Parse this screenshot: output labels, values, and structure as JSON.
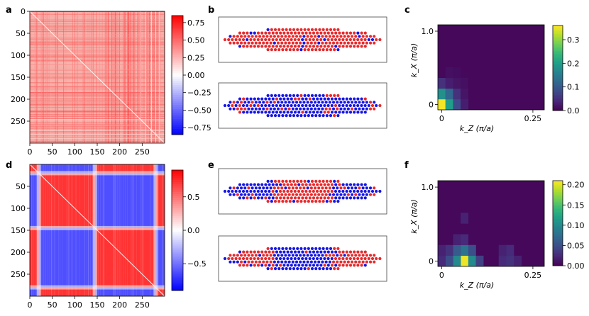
{
  "panels": [
    {
      "label": "a"
    },
    {
      "label": "b"
    },
    {
      "label": "c"
    },
    {
      "label": "d"
    },
    {
      "label": "e"
    },
    {
      "label": "f"
    }
  ],
  "colors": {
    "red": "#e8292b",
    "blue": "#1616e6",
    "neutral": "#ffffff",
    "viridis_low": "#440154",
    "viridis_high": "#fde725"
  },
  "chart_data": [
    {
      "type": "heatmap",
      "id": "a",
      "description": "correlation matrix, mostly positive",
      "x_ticks": [
        "0",
        "50",
        "100",
        "150",
        "200",
        "250"
      ],
      "y_ticks": [
        "0",
        "50",
        "100",
        "150",
        "200",
        "250"
      ],
      "x_values": [
        0,
        50,
        100,
        150,
        200,
        250
      ],
      "xlim": [
        0,
        300
      ],
      "ylim": [
        0,
        300
      ],
      "colorbar": {
        "ticks": [
          "0.75",
          "0.50",
          "0.25",
          "0.00",
          "−0.25",
          "−0.50",
          "−0.75"
        ],
        "values": [
          0.75,
          0.5,
          0.25,
          0,
          -0.25,
          -0.5,
          -0.75
        ],
        "range": [
          -0.85,
          0.85
        ],
        "cmap": "bwr"
      }
    },
    {
      "type": "heatmap",
      "id": "d",
      "description": "correlation matrix with two anti-correlated domains",
      "x_ticks": [
        "0",
        "50",
        "100",
        "150",
        "200",
        "250"
      ],
      "y_ticks": [
        "50",
        "100",
        "150",
        "200",
        "250"
      ],
      "x_values": [
        0,
        50,
        100,
        150,
        200,
        250
      ],
      "xlim": [
        0,
        300
      ],
      "ylim": [
        0,
        300
      ],
      "blocks": [
        [
          0,
          20
        ],
        [
          20,
          145
        ],
        [
          145,
          280
        ],
        [
          280,
          300
        ]
      ],
      "colorbar": {
        "ticks": [
          "0.5",
          "0.0",
          "−0.5"
        ],
        "values": [
          0.5,
          0,
          -0.5
        ],
        "range": [
          -0.9,
          0.9
        ],
        "cmap": "bwr"
      }
    },
    {
      "type": "heatmap",
      "id": "c",
      "description": "structure factor, peak at k=0",
      "xlabel": "k_Z (π/a)",
      "ylabel": "k_X (π/a)",
      "x_ticks": [
        "0",
        "0.25"
      ],
      "y_ticks": [
        "1.0",
        "0"
      ],
      "colorbar": {
        "ticks": [
          "0.3",
          "0.2",
          "0.1",
          "0.0"
        ],
        "values": [
          0.3,
          0.2,
          0.1,
          0
        ],
        "range": [
          0,
          0.36
        ],
        "cmap": "viridis"
      }
    },
    {
      "type": "heatmap",
      "id": "f",
      "description": "structure factor, peak at finite k_Z",
      "xlabel": "k_Z (π/a)",
      "ylabel": "k_X (π/a)",
      "x_ticks": [
        "0",
        "0.25"
      ],
      "y_ticks": [
        "1.0",
        "0"
      ],
      "colorbar": {
        "ticks": [
          "0.20",
          "0.15",
          "0.10",
          "0.05",
          "0.00"
        ],
        "values": [
          0.2,
          0.15,
          0.1,
          0.05,
          0
        ],
        "range": [
          0,
          0.21
        ],
        "cmap": "viridis"
      }
    },
    {
      "type": "scatter",
      "id": "b",
      "description": "ion crystal spin snapshots: top mostly red, bottom mostly blue",
      "snapshots": [
        {
          "majority": "red",
          "minority": "blue"
        },
        {
          "majority": "blue",
          "minority": "red"
        }
      ]
    },
    {
      "type": "scatter",
      "id": "e",
      "description": "ion crystal spin snapshots with two domains",
      "snapshots": [
        {
          "pattern": "blue-red-blue"
        },
        {
          "pattern": "red-blue-red"
        }
      ]
    }
  ]
}
